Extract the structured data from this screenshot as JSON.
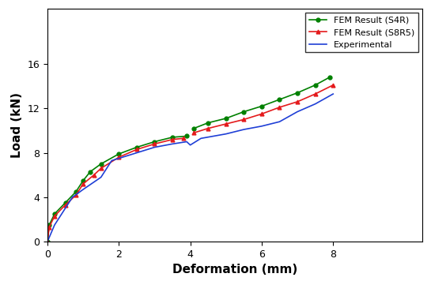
{
  "chart_data": {
    "type": "line",
    "x_label": "Deformation (mm)",
    "y_label": "Load (kN)",
    "xlim": [
      0,
      10.5
    ],
    "xticks": [
      0,
      2,
      4,
      6,
      8
    ],
    "ylim": [
      0,
      21
    ],
    "yticks": [
      0,
      4,
      8,
      12,
      16
    ],
    "grid": false,
    "legend": "upper right",
    "series": [
      {
        "name": "FEM Result (S4R)",
        "color": "#008000",
        "marker": "circle",
        "line_style": "solid",
        "x": [
          0,
          0.05,
          0.2,
          0.5,
          0.8,
          1.0,
          1.2,
          1.5,
          2.0,
          2.5,
          3.0,
          3.5,
          3.9,
          4.0,
          4.1,
          4.5,
          5.0,
          5.5,
          6.0,
          6.5,
          7.0,
          7.5,
          7.9
        ],
        "values": [
          0,
          1.5,
          2.5,
          3.5,
          4.5,
          5.5,
          6.3,
          7.0,
          7.9,
          8.5,
          9.0,
          9.4,
          9.5,
          null,
          10.2,
          10.7,
          11.1,
          11.7,
          12.2,
          12.8,
          13.4,
          14.1,
          14.8
        ]
      },
      {
        "name": "FEM Result (S8R5)",
        "color": "#e41a1c",
        "marker": "triangle",
        "line_style": "solid",
        "x": [
          0,
          0.05,
          0.2,
          0.5,
          0.8,
          1.0,
          1.3,
          1.5,
          2.0,
          2.5,
          3.0,
          3.5,
          3.8,
          4.0,
          4.1,
          4.5,
          5.0,
          5.5,
          6.0,
          6.5,
          7.0,
          7.5,
          8.0
        ],
        "values": [
          0,
          1.3,
          2.3,
          3.3,
          4.2,
          5.2,
          6.0,
          6.6,
          7.6,
          8.3,
          8.8,
          9.2,
          9.3,
          null,
          9.8,
          10.2,
          10.6,
          11.0,
          11.5,
          12.1,
          12.6,
          13.3,
          14.1
        ]
      },
      {
        "name": "Experimental",
        "color": "#1f3fd6",
        "marker": "none",
        "line_style": "solid",
        "x": [
          0,
          0.2,
          0.5,
          0.7,
          1.0,
          1.5,
          1.8,
          2.0,
          2.5,
          3.0,
          3.5,
          3.9,
          4.0,
          4.3,
          5.0,
          5.5,
          6.0,
          6.5,
          7.0,
          7.5,
          8.0
        ],
        "values": [
          0,
          1.5,
          3.0,
          4.0,
          4.7,
          5.8,
          7.3,
          7.5,
          8.0,
          8.5,
          8.8,
          9.0,
          8.7,
          9.3,
          9.7,
          10.1,
          10.4,
          10.8,
          11.7,
          12.4,
          13.3
        ]
      }
    ]
  }
}
